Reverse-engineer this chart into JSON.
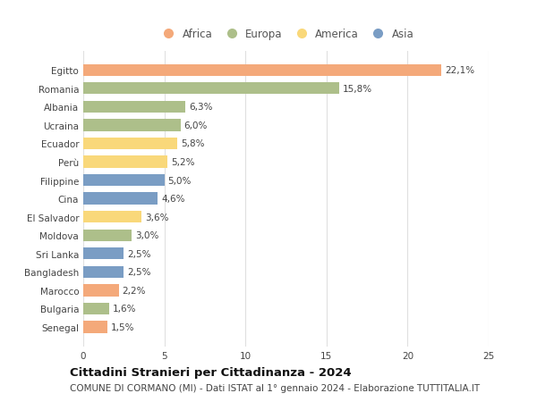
{
  "countries": [
    "Senegal",
    "Bulgaria",
    "Marocco",
    "Bangladesh",
    "Sri Lanka",
    "Moldova",
    "El Salvador",
    "Cina",
    "Filippine",
    "Perù",
    "Ecuador",
    "Ucraina",
    "Albania",
    "Romania",
    "Egitto"
  ],
  "values": [
    1.5,
    1.6,
    2.2,
    2.5,
    2.5,
    3.0,
    3.6,
    4.6,
    5.0,
    5.2,
    5.8,
    6.0,
    6.3,
    15.8,
    22.1
  ],
  "labels": [
    "1,5%",
    "1,6%",
    "2,2%",
    "2,5%",
    "2,5%",
    "3,0%",
    "3,6%",
    "4,6%",
    "5,0%",
    "5,2%",
    "5,8%",
    "6,0%",
    "6,3%",
    "15,8%",
    "22,1%"
  ],
  "continents": [
    "Africa",
    "Europa",
    "Africa",
    "Asia",
    "Asia",
    "Europa",
    "America",
    "Asia",
    "Asia",
    "America",
    "America",
    "Europa",
    "Europa",
    "Europa",
    "Africa"
  ],
  "colors": {
    "Africa": "#F4A97A",
    "Europa": "#ADBF8A",
    "America": "#F9D87A",
    "Asia": "#7A9DC4"
  },
  "legend_order": [
    "Africa",
    "Europa",
    "America",
    "Asia"
  ],
  "title_bold": "Cittadini Stranieri per Cittadinanza - 2024",
  "subtitle": "COMUNE DI CORMANO (MI) - Dati ISTAT al 1° gennaio 2024 - Elaborazione TUTTITALIA.IT",
  "xlim": [
    0,
    25
  ],
  "xticks": [
    0,
    5,
    10,
    15,
    20,
    25
  ],
  "background_color": "#ffffff",
  "grid_color": "#e0e0e0",
  "bar_height": 0.65,
  "title_fontsize": 9.5,
  "subtitle_fontsize": 7.5,
  "label_fontsize": 7.5,
  "tick_fontsize": 7.5,
  "legend_fontsize": 8.5
}
